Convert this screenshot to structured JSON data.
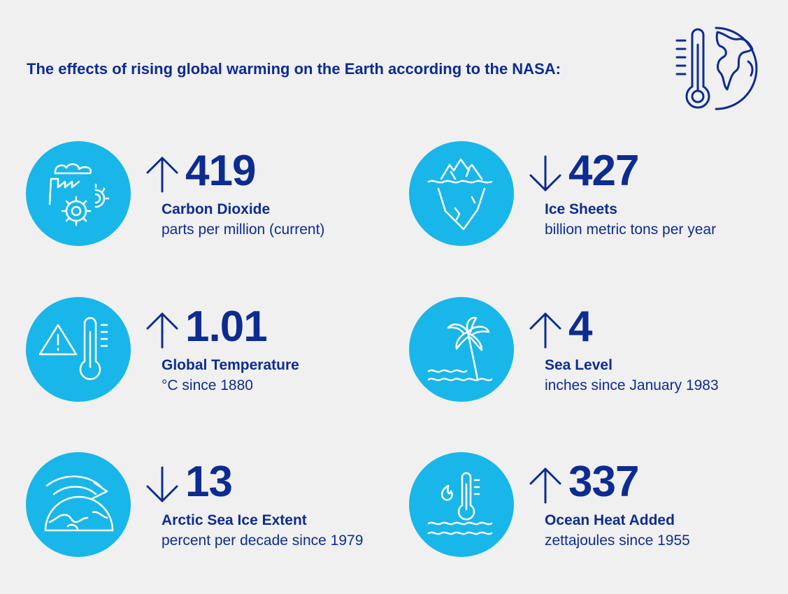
{
  "title": "The effects of rising global warming on the Earth according to the NASA:",
  "header_icon": "thermometer-globe-icon",
  "colors": {
    "background": "#f0f0f0",
    "accent": "#19b6e9",
    "text": "#0d2c91"
  },
  "metrics": [
    {
      "value": "419",
      "direction": "up",
      "label": "Carbon Dioxide",
      "desc": "parts per million (current)",
      "icon": "factory-gears-icon"
    },
    {
      "value": "427",
      "direction": "down",
      "label": "Ice Sheets",
      "desc": "billion metric tons per year",
      "icon": "iceberg-icon"
    },
    {
      "value": "1.01",
      "direction": "up",
      "label": "Global Temperature",
      "desc": "°C since 1880",
      "icon": "warning-thermometer-icon"
    },
    {
      "value": "4",
      "direction": "up",
      "label": "Sea Level",
      "desc": "inches since January 1983",
      "icon": "palm-tree-waves-icon"
    },
    {
      "value": "13",
      "direction": "down",
      "label": "Arctic Sea Ice Extent",
      "desc": "percent per decade since 1979",
      "icon": "globe-arrow-icon"
    },
    {
      "value": "337",
      "direction": "up",
      "label": "Ocean Heat Added",
      "desc": "zettajoules since 1955",
      "icon": "flame-thermometer-waves-icon"
    }
  ]
}
